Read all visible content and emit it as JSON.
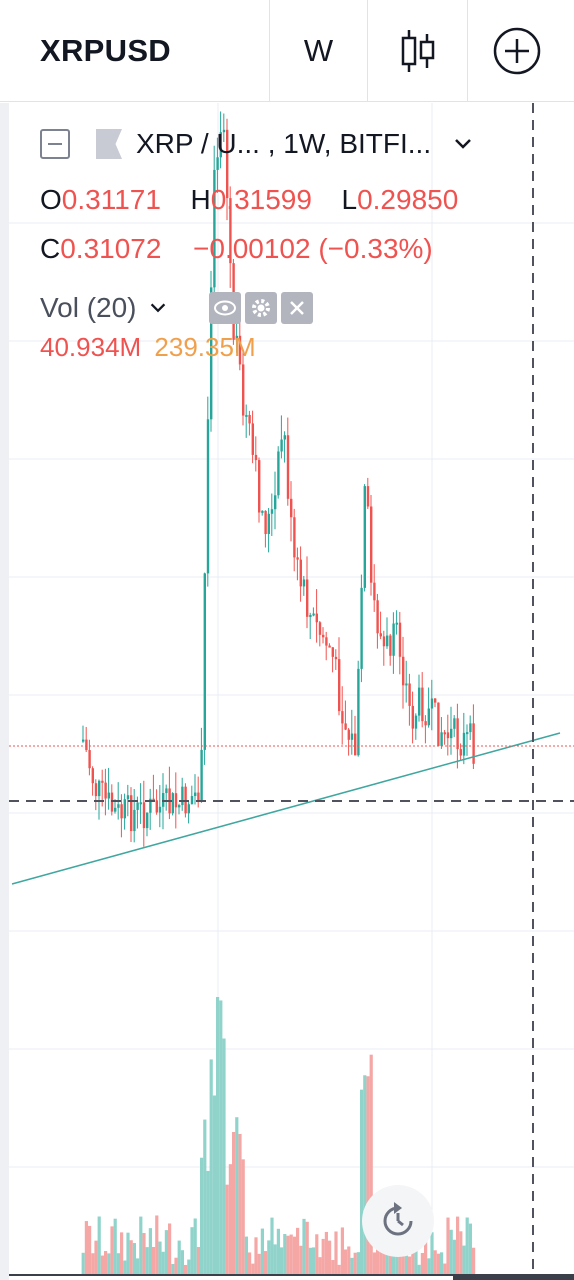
{
  "toolbar": {
    "symbol": "XRPUSD",
    "interval": "W",
    "chart_type_icon": "candles-icon",
    "add_icon": "plus-circle-icon"
  },
  "legend": {
    "title": "XRP / U... , 1W, BITFI...",
    "open_label": "O",
    "open": "0.31171",
    "high_label": "H",
    "high": "0.31599",
    "low_label": "L",
    "low": "0.29850",
    "close_label": "C",
    "close": "0.31072",
    "change": "−0.00102 (−0.33%)"
  },
  "volume": {
    "label": "Vol (20)",
    "value": "40.934M",
    "ma_value": "239.35M"
  },
  "colors": {
    "up": "#26a69a",
    "down": "#ef5350",
    "up_volume": "#8fd3cb",
    "down_volume": "#f4a7a5",
    "ma_text": "#f0a04b",
    "trendline": "#3fa7a0",
    "grid": "#e9edf3"
  },
  "chart_data": {
    "type": "candlestick",
    "symbol": "XRPUSD",
    "timeframe": "1W",
    "last_open": 0.31171,
    "last_high": 0.31599,
    "last_low": 0.2985,
    "last_close": 0.31072,
    "last_volume": "40.934M",
    "volume_ma20": "239.35M",
    "grid": true
  }
}
